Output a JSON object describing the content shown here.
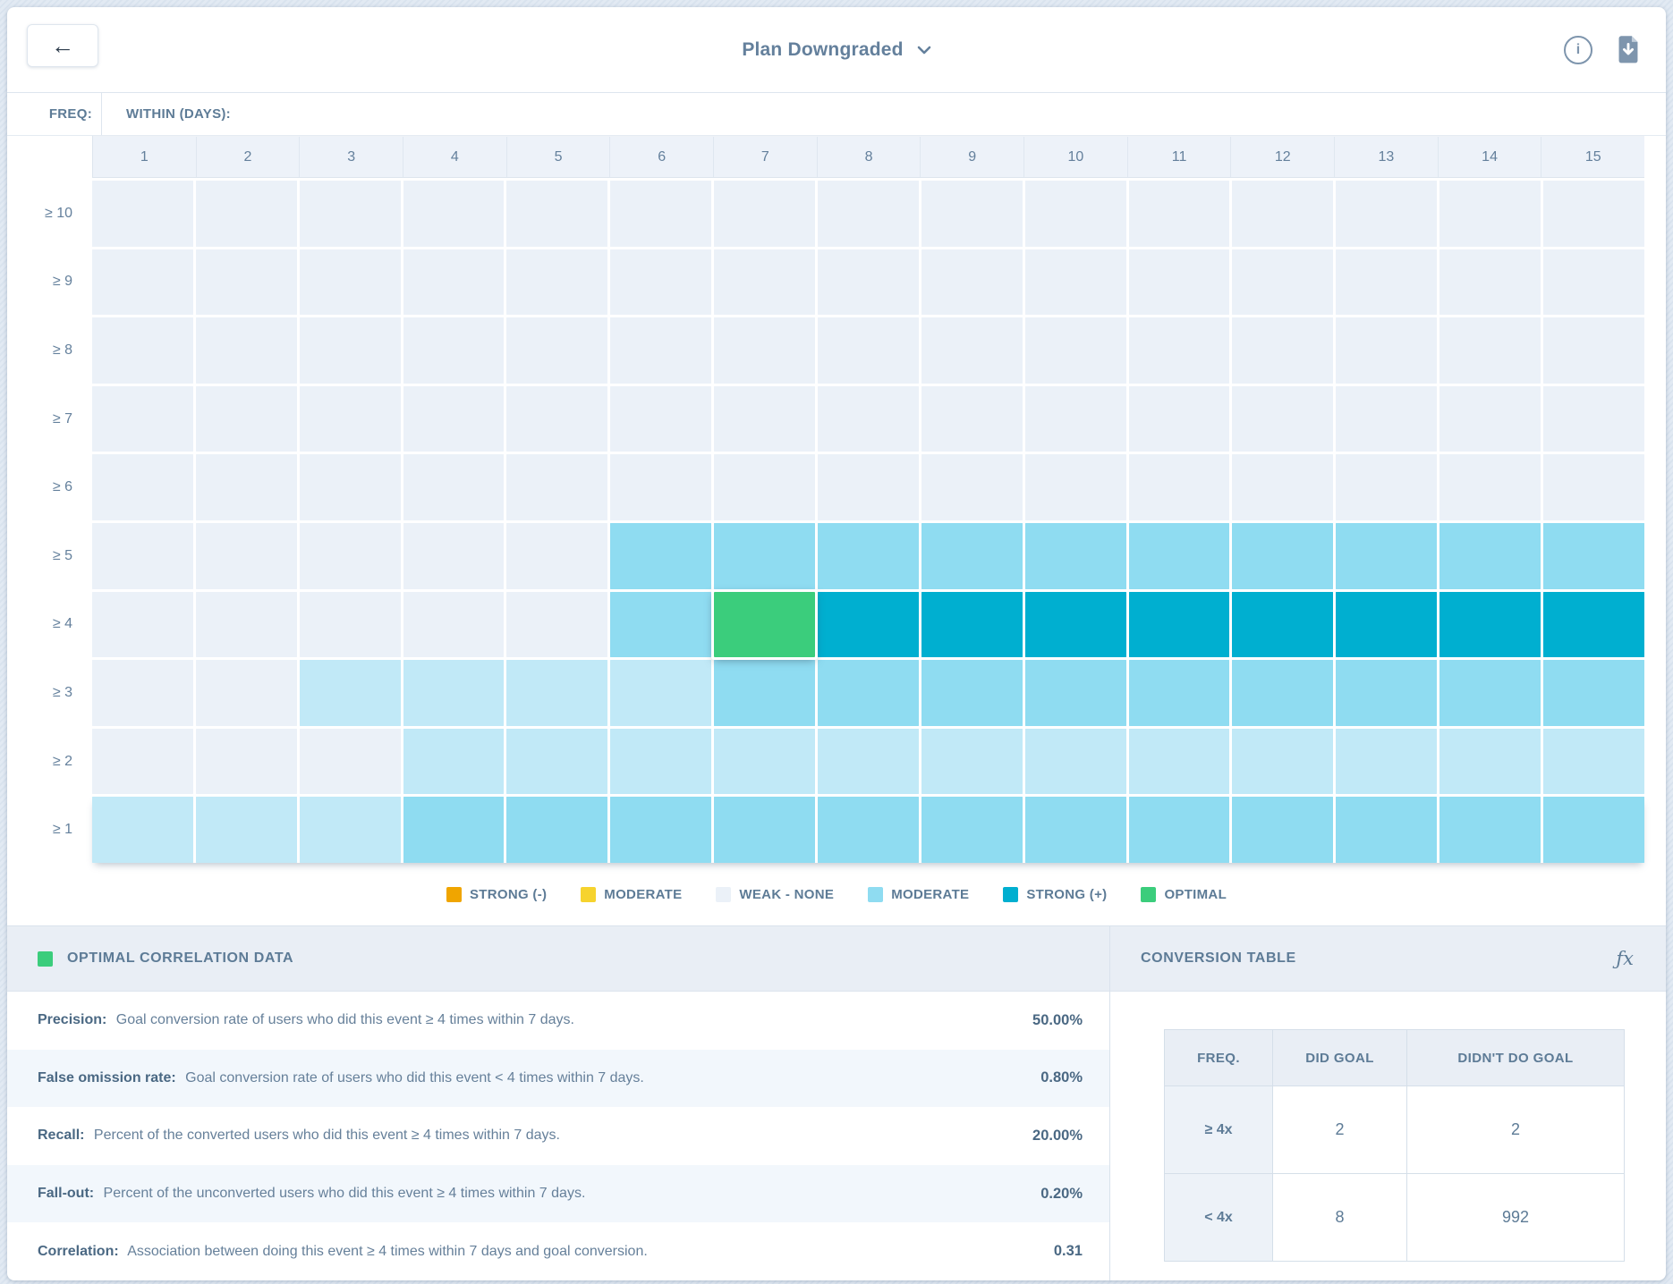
{
  "topbar": {
    "back_label": "←",
    "title": "Plan Downgraded"
  },
  "heatmap": {
    "freq_label": "FREQ:",
    "within_label": "WITHIN (DAYS):",
    "columns": [
      "1",
      "2",
      "3",
      "4",
      "5",
      "6",
      "7",
      "8",
      "9",
      "10",
      "11",
      "12",
      "13",
      "14",
      "15"
    ],
    "rows": [
      {
        "label": "≥ 10",
        "cells": [
          "weak",
          "weak",
          "weak",
          "weak",
          "weak",
          "weak",
          "weak",
          "weak",
          "weak",
          "weak",
          "weak",
          "weak",
          "weak",
          "weak",
          "weak"
        ]
      },
      {
        "label": "≥ 9",
        "cells": [
          "weak",
          "weak",
          "weak",
          "weak",
          "weak",
          "weak",
          "weak",
          "weak",
          "weak",
          "weak",
          "weak",
          "weak",
          "weak",
          "weak",
          "weak"
        ]
      },
      {
        "label": "≥ 8",
        "cells": [
          "weak",
          "weak",
          "weak",
          "weak",
          "weak",
          "weak",
          "weak",
          "weak",
          "weak",
          "weak",
          "weak",
          "weak",
          "weak",
          "weak",
          "weak"
        ]
      },
      {
        "label": "≥ 7",
        "cells": [
          "weak",
          "weak",
          "weak",
          "weak",
          "weak",
          "weak",
          "weak",
          "weak",
          "weak",
          "weak",
          "weak",
          "weak",
          "weak",
          "weak",
          "weak"
        ]
      },
      {
        "label": "≥ 6",
        "cells": [
          "weak",
          "weak",
          "weak",
          "weak",
          "weak",
          "weak",
          "weak",
          "weak",
          "weak",
          "weak",
          "weak",
          "weak",
          "weak",
          "weak",
          "weak"
        ]
      },
      {
        "label": "≥ 5",
        "cells": [
          "weak",
          "weak",
          "weak",
          "weak",
          "weak",
          "moderate",
          "moderate",
          "moderate",
          "moderate",
          "moderate",
          "moderate",
          "moderate",
          "moderate",
          "moderate",
          "moderate"
        ]
      },
      {
        "label": "≥ 4",
        "cells": [
          "weak",
          "weak",
          "weak",
          "weak",
          "weak",
          "moderate",
          "optimal",
          "strong",
          "strong",
          "strong",
          "strong",
          "strong",
          "strong",
          "strong",
          "strong"
        ]
      },
      {
        "label": "≥ 3",
        "cells": [
          "weak",
          "weak",
          "light",
          "light",
          "light",
          "light",
          "moderate",
          "moderate",
          "moderate",
          "moderate",
          "moderate",
          "moderate",
          "moderate",
          "moderate",
          "moderate"
        ]
      },
      {
        "label": "≥ 2",
        "cells": [
          "weak",
          "weak",
          "weak",
          "light",
          "light",
          "light",
          "light",
          "light",
          "light",
          "light",
          "light",
          "light",
          "light",
          "light",
          "light"
        ]
      },
      {
        "label": "≥ 1",
        "cells": [
          "light",
          "light",
          "light",
          "moderate",
          "moderate",
          "moderate",
          "moderate",
          "moderate",
          "moderate",
          "moderate",
          "moderate",
          "moderate",
          "moderate",
          "moderate",
          "moderate"
        ]
      }
    ]
  },
  "colors": {
    "weak": "#ebf1f8",
    "light": "#c1e9f7",
    "moderate": "#8fdcf1",
    "strong": "#00afd0",
    "optimal": "#3bcd7c",
    "strong_negative": "#f0a500",
    "moderate_negative": "#f6d32e",
    "accent_text": "#5d7b96"
  },
  "legend": {
    "items": [
      {
        "label": "STRONG (-)",
        "color": "#f0a500",
        "textured": false
      },
      {
        "label": "MODERATE",
        "color": "#f6d32e",
        "textured": false
      },
      {
        "label": "WEAK - NONE",
        "color": "#ebf1f8",
        "textured": false
      },
      {
        "label": "MODERATE",
        "color": "#8fdcf1",
        "textured": true
      },
      {
        "label": "STRONG (+)",
        "color": "#00afd0",
        "textured": false
      },
      {
        "label": "OPTIMAL",
        "color": "#3bcd7c",
        "textured": false
      }
    ]
  },
  "panels": {
    "left": {
      "title": "OPTIMAL CORRELATION DATA",
      "stats": [
        {
          "label": "Precision:",
          "text": "Goal conversion rate of users who did this event ≥ 4 times within 7 days.",
          "value": "50.00%"
        },
        {
          "label": "False omission rate:",
          "text": "Goal conversion rate of users who did this event < 4 times within 7 days.",
          "value": "0.80%"
        },
        {
          "label": "Recall:",
          "text": "Percent of the converted users who did this event ≥ 4 times within 7 days.",
          "value": "20.00%"
        },
        {
          "label": "Fall-out:",
          "text": "Percent of the unconverted users who did this event ≥ 4 times within 7 days.",
          "value": "0.20%"
        },
        {
          "label": "Correlation:",
          "text": "Association between doing this event ≥ 4 times within 7 days and goal conversion.",
          "value": "0.31"
        }
      ]
    },
    "right": {
      "title": "CONVERSION TABLE",
      "fx_label": "ƒx",
      "table": {
        "headers": [
          "FREQ.",
          "DID GOAL",
          "DIDN'T DO GOAL"
        ],
        "rows": [
          {
            "freq": "≥ 4x",
            "did_goal": "2",
            "didnt_do_goal": "2"
          },
          {
            "freq": "< 4x",
            "did_goal": "8",
            "didnt_do_goal": "992"
          }
        ]
      }
    }
  },
  "chart_data": {
    "type": "heatmap",
    "title": "Plan Downgraded",
    "xlabel": "WITHIN (DAYS):",
    "ylabel": "FREQ:",
    "x": [
      1,
      2,
      3,
      4,
      5,
      6,
      7,
      8,
      9,
      10,
      11,
      12,
      13,
      14,
      15
    ],
    "y": [
      "≥ 10",
      "≥ 9",
      "≥ 8",
      "≥ 7",
      "≥ 6",
      "≥ 5",
      "≥ 4",
      "≥ 3",
      "≥ 2",
      "≥ 1"
    ],
    "levels_scale": [
      "strong_negative",
      "moderate_negative",
      "weak",
      "light",
      "moderate",
      "strong",
      "optimal"
    ],
    "values": [
      [
        "weak",
        "weak",
        "weak",
        "weak",
        "weak",
        "weak",
        "weak",
        "weak",
        "weak",
        "weak",
        "weak",
        "weak",
        "weak",
        "weak",
        "weak"
      ],
      [
        "weak",
        "weak",
        "weak",
        "weak",
        "weak",
        "weak",
        "weak",
        "weak",
        "weak",
        "weak",
        "weak",
        "weak",
        "weak",
        "weak",
        "weak"
      ],
      [
        "weak",
        "weak",
        "weak",
        "weak",
        "weak",
        "weak",
        "weak",
        "weak",
        "weak",
        "weak",
        "weak",
        "weak",
        "weak",
        "weak",
        "weak"
      ],
      [
        "weak",
        "weak",
        "weak",
        "weak",
        "weak",
        "weak",
        "weak",
        "weak",
        "weak",
        "weak",
        "weak",
        "weak",
        "weak",
        "weak",
        "weak"
      ],
      [
        "weak",
        "weak",
        "weak",
        "weak",
        "weak",
        "weak",
        "weak",
        "weak",
        "weak",
        "weak",
        "weak",
        "weak",
        "weak",
        "weak",
        "weak"
      ],
      [
        "weak",
        "weak",
        "weak",
        "weak",
        "weak",
        "moderate",
        "moderate",
        "moderate",
        "moderate",
        "moderate",
        "moderate",
        "moderate",
        "moderate",
        "moderate",
        "moderate"
      ],
      [
        "weak",
        "weak",
        "weak",
        "weak",
        "weak",
        "moderate",
        "optimal",
        "strong",
        "strong",
        "strong",
        "strong",
        "strong",
        "strong",
        "strong",
        "strong"
      ],
      [
        "weak",
        "weak",
        "light",
        "light",
        "light",
        "light",
        "moderate",
        "moderate",
        "moderate",
        "moderate",
        "moderate",
        "moderate",
        "moderate",
        "moderate",
        "moderate"
      ],
      [
        "weak",
        "weak",
        "weak",
        "light",
        "light",
        "light",
        "light",
        "light",
        "light",
        "light",
        "light",
        "light",
        "light",
        "light",
        "light"
      ],
      [
        "light",
        "light",
        "light",
        "moderate",
        "moderate",
        "moderate",
        "moderate",
        "moderate",
        "moderate",
        "moderate",
        "moderate",
        "moderate",
        "moderate",
        "moderate",
        "moderate"
      ]
    ],
    "selected_cell": {
      "freq": "≥ 4",
      "within_days": 7,
      "level": "optimal"
    },
    "legend_position": "bottom"
  }
}
